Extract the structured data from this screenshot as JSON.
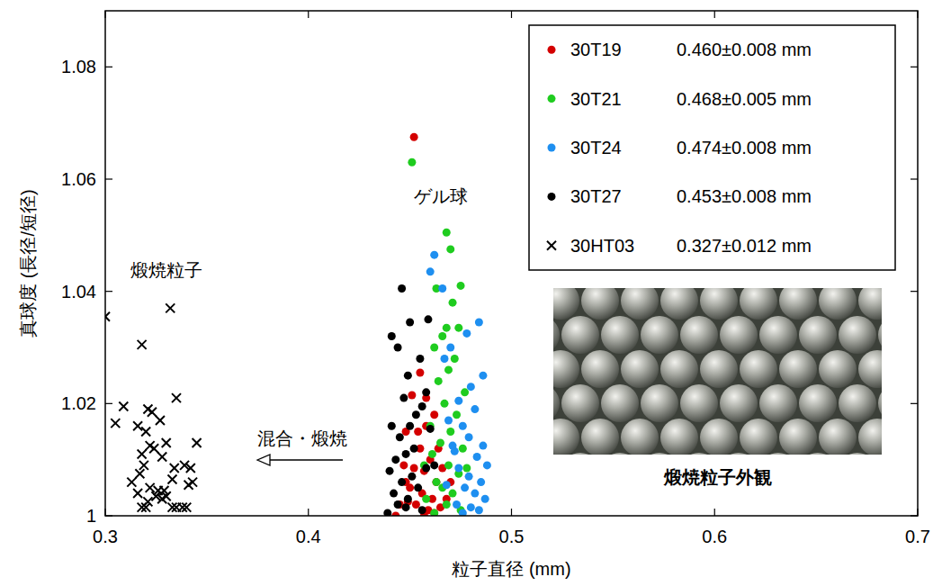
{
  "chart_data": {
    "type": "scatter",
    "x_label": "粒子直径 (mm)",
    "y_label": "真球度 (長径/短径)",
    "xlim": [
      0.3,
      0.7
    ],
    "xticks": [
      0.3,
      0.4,
      0.5,
      0.6,
      0.7
    ],
    "ylim": [
      1,
      1.09
    ],
    "yticks": [
      1,
      1.02,
      1.04,
      1.06,
      1.08
    ],
    "grid": false,
    "legend": "top-right",
    "annotations": {
      "gel": "ゲル球",
      "calcined": "煅焼粒子",
      "process": "混合・煅焼",
      "photo_caption": "煅焼粒子外観"
    },
    "series": [
      {
        "name": "30T19",
        "legend_text": "0.460±0.008 mm",
        "color": "#d40000",
        "marker": "circle",
        "x": [
          0.452,
          0.455,
          0.458,
          0.462,
          0.448,
          0.455,
          0.46,
          0.447,
          0.452,
          0.457,
          0.463,
          0.45,
          0.456,
          0.461,
          0.445,
          0.453,
          0.459,
          0.443,
          0.449,
          0.466,
          0.47,
          0.454,
          0.464,
          0.458,
          0.451,
          0.468,
          0.462,
          0.457,
          0.448,
          0.465
        ],
        "values": [
          1.0675,
          1.0255,
          1.021,
          1.018,
          1.015,
          1.012,
          1.01,
          1.009,
          1.0085,
          1.008,
          1.006,
          1.005,
          1.004,
          1.003,
          1.002,
          1.002,
          1.001,
          1.0,
          1.0025,
          1.0085,
          1.006,
          1.015,
          1.012,
          1.016,
          1.0215,
          1.003,
          1.0005,
          1.0,
          1.006,
          1.0015
        ]
      },
      {
        "name": "30T21",
        "legend_text": "0.468±0.005 mm",
        "color": "#1fcc1f",
        "marker": "circle",
        "x": [
          0.451,
          0.468,
          0.47,
          0.475,
          0.463,
          0.471,
          0.468,
          0.474,
          0.466,
          0.462,
          0.472,
          0.469,
          0.464,
          0.477,
          0.467,
          0.473,
          0.46,
          0.47,
          0.465,
          0.476,
          0.461,
          0.469,
          0.474,
          0.463,
          0.466,
          0.471,
          0.458,
          0.468,
          0.475,
          0.462,
          0.478,
          0.457
        ],
        "values": [
          1.063,
          1.0505,
          1.0475,
          1.041,
          1.0405,
          1.038,
          1.0335,
          1.0335,
          1.032,
          1.03,
          1.028,
          1.026,
          1.024,
          1.022,
          1.02,
          1.018,
          1.016,
          1.015,
          1.013,
          1.012,
          1.011,
          1.009,
          1.0075,
          1.006,
          1.005,
          1.004,
          1.003,
          1.002,
          1.001,
          1.0005,
          1.0085,
          1.009
        ]
      },
      {
        "name": "30T24",
        "legend_text": "0.474±0.008 mm",
        "color": "#1e8ff0",
        "marker": "circle",
        "x": [
          0.462,
          0.46,
          0.466,
          0.484,
          0.478,
          0.47,
          0.467,
          0.486,
          0.48,
          0.474,
          0.482,
          0.469,
          0.476,
          0.479,
          0.486,
          0.472,
          0.483,
          0.488,
          0.474,
          0.479,
          0.485,
          0.477,
          0.482,
          0.487,
          0.473,
          0.48,
          0.484,
          0.476,
          0.471,
          0.468
        ],
        "values": [
          1.0465,
          1.0435,
          1.0405,
          1.0345,
          1.0325,
          1.03,
          1.028,
          1.025,
          1.023,
          1.0205,
          1.019,
          1.017,
          1.016,
          1.014,
          1.0125,
          1.0115,
          1.0105,
          1.009,
          1.0085,
          1.007,
          1.006,
          1.005,
          1.004,
          1.003,
          1.002,
          1.0015,
          1.001,
          1.0005,
          1.0125,
          1.0055
        ]
      },
      {
        "name": "30T27",
        "legend_text": "0.453±0.008 mm",
        "color": "#000000",
        "marker": "circle",
        "x": [
          0.446,
          0.45,
          0.459,
          0.441,
          0.444,
          0.455,
          0.449,
          0.447,
          0.456,
          0.453,
          0.441,
          0.46,
          0.445,
          0.452,
          0.448,
          0.443,
          0.458,
          0.44,
          0.451,
          0.446,
          0.454,
          0.442,
          0.449,
          0.444,
          0.439,
          0.448,
          0.456,
          0.462,
          0.458,
          0.45
        ],
        "values": [
          1.0405,
          1.0345,
          1.035,
          1.032,
          1.03,
          1.028,
          1.025,
          1.021,
          1.0195,
          1.018,
          1.016,
          1.0155,
          1.014,
          1.012,
          1.011,
          1.01,
          1.0085,
          1.008,
          1.007,
          1.006,
          1.005,
          1.004,
          1.003,
          1.002,
          1.0005,
          1.0015,
          1.001,
          1.009,
          1.022,
          1.016
        ]
      },
      {
        "name": "30HT03",
        "legend_text": "0.327±0.012 mm",
        "color": "#000000",
        "marker": "x",
        "x": [
          0.3,
          0.332,
          0.318,
          0.305,
          0.309,
          0.335,
          0.321,
          0.323,
          0.327,
          0.316,
          0.32,
          0.33,
          0.345,
          0.322,
          0.324,
          0.318,
          0.328,
          0.339,
          0.342,
          0.334,
          0.319,
          0.317,
          0.313,
          0.333,
          0.341,
          0.343,
          0.322,
          0.326,
          0.329,
          0.316,
          0.325,
          0.328,
          0.321,
          0.318,
          0.333,
          0.335,
          0.338,
          0.34,
          0.33,
          0.32
        ],
        "values": [
          1.0355,
          1.037,
          1.0305,
          1.0165,
          1.0195,
          1.021,
          1.019,
          1.0185,
          1.017,
          1.016,
          1.015,
          1.013,
          1.013,
          1.0125,
          1.012,
          1.011,
          1.0105,
          1.009,
          1.0085,
          1.0085,
          1.009,
          1.0075,
          1.006,
          1.0065,
          1.0055,
          1.006,
          1.005,
          1.0045,
          1.0045,
          1.004,
          1.0035,
          1.003,
          1.0025,
          1.0015,
          1.0015,
          1.0015,
          1.0015,
          1.0015,
          1.0035,
          1.0015
        ]
      }
    ]
  }
}
